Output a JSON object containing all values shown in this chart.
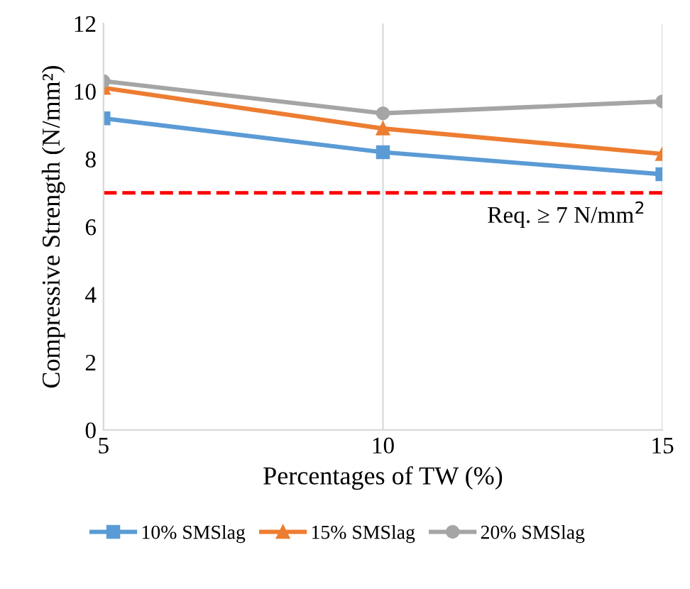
{
  "chart_data": {
    "type": "line",
    "xlabel": "Percentages of TW (%)",
    "ylabel": "Compressive Strength (N/mm²)",
    "x": [
      5,
      10,
      15
    ],
    "series": [
      {
        "name": "10% SMSlag",
        "color": "#5b9bd5",
        "marker": "square",
        "values": [
          9.2,
          8.2,
          7.55
        ]
      },
      {
        "name": "15% SMSlag",
        "color": "#ed7d31",
        "marker": "triangle",
        "values": [
          10.1,
          8.9,
          8.15
        ]
      },
      {
        "name": "20% SMSlag",
        "color": "#a5a5a5",
        "marker": "circle",
        "values": [
          10.3,
          9.35,
          9.7
        ]
      }
    ],
    "xlim": [
      5,
      15
    ],
    "xticks": [
      5,
      10,
      15
    ],
    "ylim": [
      0,
      12
    ],
    "yticks": [
      0,
      2,
      4,
      6,
      8,
      10,
      12
    ],
    "ref_lines": [
      {
        "axis": "y",
        "value": 7,
        "label": "Req. ≥ 7 N/mm$^{2}$",
        "color": "#ff0000",
        "line_style": "dashed"
      }
    ],
    "grid": "x",
    "legend": "bottom",
    "line_style": "solid"
  }
}
